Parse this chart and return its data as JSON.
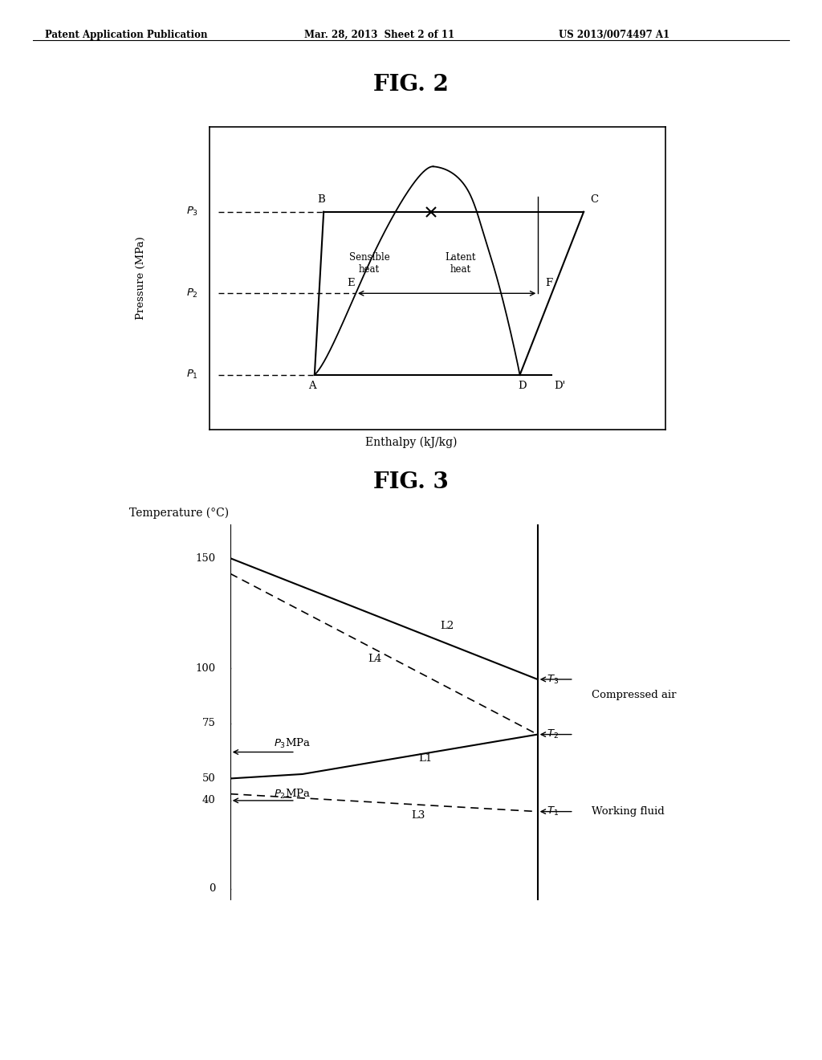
{
  "header_left": "Patent Application Publication",
  "header_mid": "Mar. 28, 2013  Sheet 2 of 11",
  "header_right": "US 2013/0074497 A1",
  "fig2_title": "FIG. 2",
  "fig3_title": "FIG. 3",
  "bg_color": "#ffffff",
  "text_color": "#000000",
  "fig2_xlabel": "Enthalpy (kJ/kg)",
  "fig2_ylabel": "Pressure (MPa)",
  "fig3_ylabel": "Temperature (°C)",
  "fig3_yticks": [
    0,
    40,
    50,
    75,
    100,
    150
  ]
}
